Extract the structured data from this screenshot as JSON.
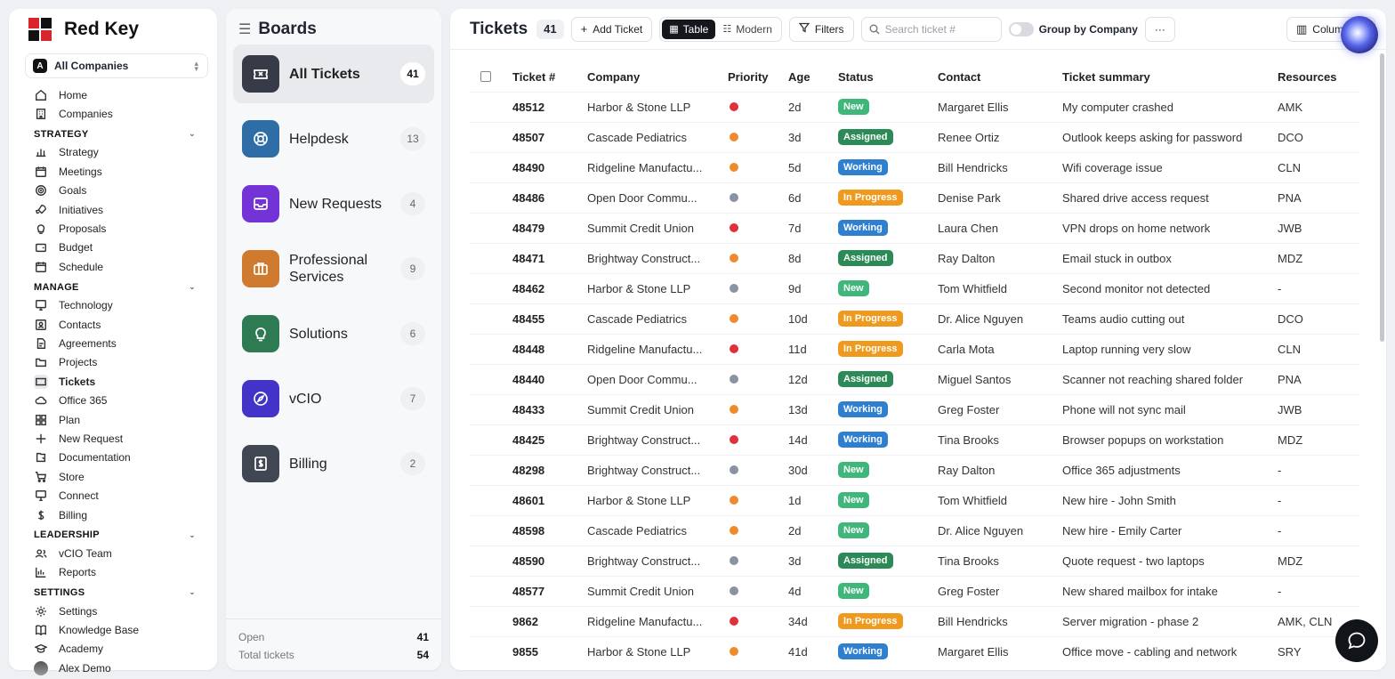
{
  "brand": {
    "name": "Red Key"
  },
  "company_selector": {
    "letter": "A",
    "label": "All Companies"
  },
  "nav": {
    "top": [
      {
        "label": "Home",
        "icon": "home-icon"
      },
      {
        "label": "Companies",
        "icon": "building-icon"
      }
    ],
    "sections": [
      {
        "title": "STRATEGY",
        "items": [
          {
            "label": "Strategy",
            "icon": "strategy-icon"
          },
          {
            "label": "Meetings",
            "icon": "meetings-icon"
          },
          {
            "label": "Goals",
            "icon": "goals-icon"
          },
          {
            "label": "Initiatives",
            "icon": "rocket-icon"
          },
          {
            "label": "Proposals",
            "icon": "lightbulb-icon"
          },
          {
            "label": "Budget",
            "icon": "budget-icon"
          },
          {
            "label": "Schedule",
            "icon": "calendar-icon"
          }
        ]
      },
      {
        "title": "MANAGE",
        "items": [
          {
            "label": "Technology",
            "icon": "monitor-icon"
          },
          {
            "label": "Contacts",
            "icon": "contacts-icon"
          },
          {
            "label": "Agreements",
            "icon": "agreements-icon"
          },
          {
            "label": "Projects",
            "icon": "folder-icon"
          },
          {
            "label": "Tickets",
            "icon": "ticket-icon",
            "active": true
          },
          {
            "label": "Office 365",
            "icon": "cloud-icon"
          },
          {
            "label": "Plan",
            "icon": "grid-icon"
          },
          {
            "label": "New Request",
            "icon": "plus-icon"
          },
          {
            "label": "Documentation",
            "icon": "docs-icon"
          },
          {
            "label": "Store",
            "icon": "cart-icon"
          },
          {
            "label": "Connect",
            "icon": "connect-icon"
          },
          {
            "label": "Billing",
            "icon": "dollar-icon"
          }
        ]
      },
      {
        "title": "LEADERSHIP",
        "items": [
          {
            "label": "vCIO Team",
            "icon": "team-icon"
          },
          {
            "label": "Reports",
            "icon": "reports-icon"
          }
        ]
      },
      {
        "title": "SETTINGS",
        "items": [
          {
            "label": "Settings",
            "icon": "gear-icon"
          },
          {
            "label": "Knowledge Base",
            "icon": "book-icon"
          },
          {
            "label": "Academy",
            "icon": "academy-icon"
          },
          {
            "label": "Alex Demo",
            "icon": "avatar"
          }
        ]
      }
    ]
  },
  "boards": {
    "title": "Boards",
    "items": [
      {
        "label": "All Tickets",
        "count": "41",
        "color": "#363b47",
        "icon": "ticket-icon",
        "active": true
      },
      {
        "label": "Helpdesk",
        "count": "13",
        "color": "#2f6da6",
        "icon": "lifebuoy-icon"
      },
      {
        "label": "New Requests",
        "count": "4",
        "color": "#7433d6",
        "icon": "inbox-icon"
      },
      {
        "label": "Professional Services",
        "count": "9",
        "color": "#cf7a2e",
        "icon": "briefcase-icon"
      },
      {
        "label": "Solutions",
        "count": "6",
        "color": "#2e7a52",
        "icon": "lightbulb-icon"
      },
      {
        "label": "vCIO",
        "count": "7",
        "color": "#4433c9",
        "icon": "compass-icon"
      },
      {
        "label": "Billing",
        "count": "2",
        "color": "#404752",
        "icon": "billing-icon"
      }
    ],
    "footer": [
      {
        "label": "Open",
        "value": "41"
      },
      {
        "label": "Total tickets",
        "value": "54"
      }
    ]
  },
  "toolbar": {
    "title": "Tickets",
    "count": "41",
    "add_label": "Add Ticket",
    "view_table": "Table",
    "view_modern": "Modern",
    "filters_label": "Filters",
    "search_placeholder": "Search ticket #",
    "group_label": "Group by Company",
    "more_label": "···",
    "columns_label": "Colum"
  },
  "table": {
    "headers": [
      "Ticket #",
      "Company",
      "Priority",
      "Age",
      "Status",
      "Contact",
      "Ticket summary",
      "Resources"
    ],
    "priority_colors": {
      "high": "#e0303a",
      "medium": "#f08a2c",
      "low": "#8a93a3"
    },
    "status_colors": {
      "New": "#3fb67a",
      "Assigned": "#2c8a57",
      "Working": "#2f7fd0",
      "In Progress": "#ef9a1e"
    },
    "rows": [
      [
        "48512",
        "Harbor & Stone LLP",
        "high",
        "2d",
        "New",
        "Margaret Ellis",
        "My computer crashed",
        "AMK"
      ],
      [
        "48507",
        "Cascade Pediatrics",
        "medium",
        "3d",
        "Assigned",
        "Renee Ortiz",
        "Outlook keeps asking for password",
        "DCO"
      ],
      [
        "48490",
        "Ridgeline Manufactu...",
        "medium",
        "5d",
        "Working",
        "Bill Hendricks",
        "Wifi coverage issue",
        "CLN"
      ],
      [
        "48486",
        "Open Door Commu...",
        "low",
        "6d",
        "In Progress",
        "Denise Park",
        "Shared drive access request",
        "PNA"
      ],
      [
        "48479",
        "Summit Credit Union",
        "high",
        "7d",
        "Working",
        "Laura Chen",
        "VPN drops on home network",
        "JWB"
      ],
      [
        "48471",
        "Brightway Construct...",
        "medium",
        "8d",
        "Assigned",
        "Ray Dalton",
        "Email stuck in outbox",
        "MDZ"
      ],
      [
        "48462",
        "Harbor & Stone LLP",
        "low",
        "9d",
        "New",
        "Tom Whitfield",
        "Second monitor not detected",
        "-"
      ],
      [
        "48455",
        "Cascade Pediatrics",
        "medium",
        "10d",
        "In Progress",
        "Dr. Alice Nguyen",
        "Teams audio cutting out",
        "DCO"
      ],
      [
        "48448",
        "Ridgeline Manufactu...",
        "high",
        "11d",
        "In Progress",
        "Carla Mota",
        "Laptop running very slow",
        "CLN"
      ],
      [
        "48440",
        "Open Door Commu...",
        "low",
        "12d",
        "Assigned",
        "Miguel Santos",
        "Scanner not reaching shared folder",
        "PNA"
      ],
      [
        "48433",
        "Summit Credit Union",
        "medium",
        "13d",
        "Working",
        "Greg Foster",
        "Phone will not sync mail",
        "JWB"
      ],
      [
        "48425",
        "Brightway Construct...",
        "high",
        "14d",
        "Working",
        "Tina Brooks",
        "Browser popups on workstation",
        "MDZ"
      ],
      [
        "48298",
        "Brightway Construct...",
        "low",
        "30d",
        "New",
        "Ray Dalton",
        "Office 365 adjustments",
        "-"
      ],
      [
        "48601",
        "Harbor & Stone LLP",
        "medium",
        "1d",
        "New",
        "Tom Whitfield",
        "New hire - John Smith",
        "-"
      ],
      [
        "48598",
        "Cascade Pediatrics",
        "medium",
        "2d",
        "New",
        "Dr. Alice Nguyen",
        "New hire - Emily Carter",
        "-"
      ],
      [
        "48590",
        "Brightway Construct...",
        "low",
        "3d",
        "Assigned",
        "Tina Brooks",
        "Quote request - two laptops",
        "MDZ"
      ],
      [
        "48577",
        "Summit Credit Union",
        "low",
        "4d",
        "New",
        "Greg Foster",
        "New shared mailbox for intake",
        "-"
      ],
      [
        "9862",
        "Ridgeline Manufactu...",
        "high",
        "34d",
        "In Progress",
        "Bill Hendricks",
        "Server migration - phase 2",
        "AMK, CLN"
      ],
      [
        "9855",
        "Harbor & Stone LLP",
        "medium",
        "41d",
        "Working",
        "Margaret Ellis",
        "Office move - cabling and network",
        "SRY"
      ]
    ]
  }
}
